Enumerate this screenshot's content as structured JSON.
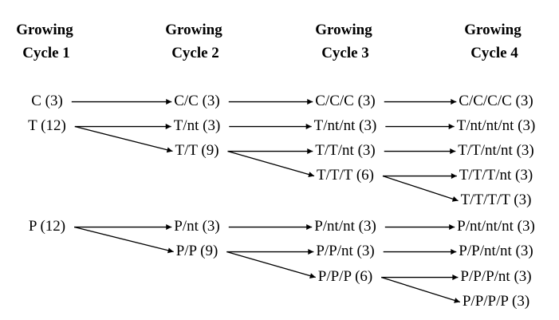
{
  "columns": [
    {
      "line1": "Growing",
      "line2": "Cycle 1"
    },
    {
      "line1": "Growing",
      "line2": "Cycle 2"
    },
    {
      "line1": "Growing",
      "line2": "Cycle 3"
    },
    {
      "line1": "Growing",
      "line2": "Cycle 4"
    }
  ],
  "nodes": {
    "c1_c": "C (3)",
    "c1_t": "T (12)",
    "c1_p": "P (12)",
    "c2_cc": "C/C (3)",
    "c2_tnt": "T/nt (3)",
    "c2_tt": "T/T (9)",
    "c2_pnt": "P/nt (3)",
    "c2_pp": "P/P (9)",
    "c3_ccc": "C/C/C (3)",
    "c3_tntnt": "T/nt/nt (3)",
    "c3_ttnt": "T/T/nt (3)",
    "c3_ttt": "T/T/T (6)",
    "c3_pntnt": "P/nt/nt (3)",
    "c3_ppnt": "P/P/nt (3)",
    "c3_ppp": "P/P/P (6)",
    "c4_cccc": "C/C/C/C (3)",
    "c4_tntntnt": "T/nt/nt/nt (3)",
    "c4_ttntnt": "T/T/nt/nt (3)",
    "c4_tttnt": "T/T/T/nt (3)",
    "c4_tttt": "T/T/T/T (3)",
    "c4_pntntnt": "P/nt/nt/nt (3)",
    "c4_ppntnt": "P/P/nt/nt (3)",
    "c4_pppnt": "P/P/P/nt (3)",
    "c4_pppp": "P/P/P/P (3)"
  },
  "edges": [
    {
      "from": "c1_c",
      "to": "c2_cc"
    },
    {
      "from": "c1_t",
      "to": "c2_tnt"
    },
    {
      "from": "c1_t",
      "to": "c2_tt"
    },
    {
      "from": "c1_p",
      "to": "c2_pnt"
    },
    {
      "from": "c1_p",
      "to": "c2_pp"
    },
    {
      "from": "c2_cc",
      "to": "c3_ccc"
    },
    {
      "from": "c2_tnt",
      "to": "c3_tntnt"
    },
    {
      "from": "c2_tt",
      "to": "c3_ttnt"
    },
    {
      "from": "c2_tt",
      "to": "c3_ttt"
    },
    {
      "from": "c2_pnt",
      "to": "c3_pntnt"
    },
    {
      "from": "c2_pp",
      "to": "c3_ppnt"
    },
    {
      "from": "c2_pp",
      "to": "c3_ppp"
    },
    {
      "from": "c3_ccc",
      "to": "c4_cccc"
    },
    {
      "from": "c3_tntnt",
      "to": "c4_tntntnt"
    },
    {
      "from": "c3_ttnt",
      "to": "c4_ttntnt"
    },
    {
      "from": "c3_ttt",
      "to": "c4_tttnt"
    },
    {
      "from": "c3_ttt",
      "to": "c4_tttt"
    },
    {
      "from": "c3_pntnt",
      "to": "c4_pntntnt"
    },
    {
      "from": "c3_ppnt",
      "to": "c4_ppntnt"
    },
    {
      "from": "c3_ppp",
      "to": "c4_pppnt"
    },
    {
      "from": "c3_ppp",
      "to": "c4_pppp"
    }
  ]
}
